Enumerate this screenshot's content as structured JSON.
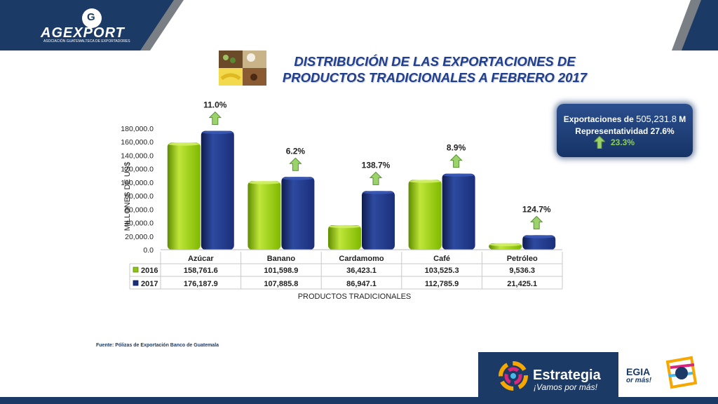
{
  "header": {
    "brand": "AGEXPORT",
    "brand_tagline": "ASOCIACIÓN GUATEMALTECA DE EXPORTADORES",
    "brand_colors": {
      "navy": "#1b3a66",
      "grey": "#7a7f86"
    }
  },
  "title": {
    "line1": "DISTRIBUCIÓN  DE LAS EXPORTACIONES DE",
    "line2": "PRODUCTOS TRADICIONALES A FEBRERO 2017"
  },
  "summary": {
    "prefix": "Exportaciones de ",
    "amount": "505,231.8",
    "unit": " M",
    "line2": "Representatividad 27.6%",
    "growth": "23.3%"
  },
  "source_note": "Fuente: Pólizas de Exportación Banco de Guatemala",
  "footer": {
    "estrategia_title": "Estrategia",
    "estrategia_subtitle": "¡Vamos por más!",
    "estrategia_small_title": "EGIA",
    "estrategia_small_sub": "or más!"
  },
  "chart_data": {
    "type": "bar",
    "title": "",
    "xlabel": "PRODUCTOS TRADICIONALES",
    "ylabel": "MILLONES DE US$",
    "ylim": [
      0,
      180000
    ],
    "yticks": [
      "180,000.0",
      "160,000.0",
      "140,000.0",
      "120,000.0",
      "100,000.0",
      "80,000.0",
      "60,000.0",
      "40,000.0",
      "20,000.0",
      "0.0"
    ],
    "categories": [
      "Azúcar",
      "Banano",
      "Cardamomo",
      "Café",
      "Petróleo"
    ],
    "series": [
      {
        "name": "2016",
        "color": "#8cc21a",
        "values": [
          158761.6,
          101598.9,
          36423.1,
          103525.3,
          9536.3
        ],
        "labels": [
          "158,761.6",
          "101,598.9",
          "36,423.1",
          "103,525.3",
          "9,536.3"
        ]
      },
      {
        "name": "2017",
        "color": "#1b2f7a",
        "values": [
          176187.9,
          107885.8,
          86947.1,
          112785.9,
          21425.1
        ],
        "labels": [
          "176,187.9",
          "107,885.8",
          "86,947.1",
          "112,785.9",
          "21,425.1"
        ]
      }
    ],
    "growth_labels": [
      "11.0%",
      "6.2%",
      "138.7%",
      "8.9%",
      "124.7%"
    ],
    "legend": "data-table",
    "grid": false
  }
}
